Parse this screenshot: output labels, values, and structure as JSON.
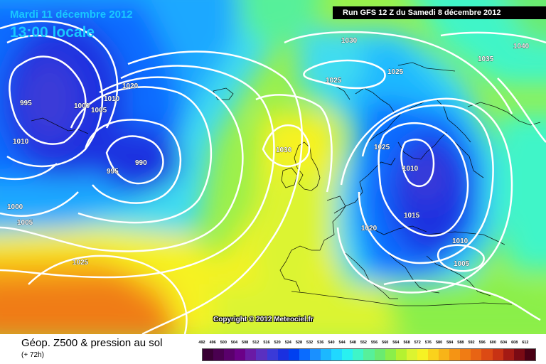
{
  "header": {
    "date_text": "Mardi 11 décembre 2012",
    "time_text": "13:00 locale",
    "run_text": "Run GFS 12 Z du Samedi 8 décembre 2012"
  },
  "copyright": "Copyright © 2012 Meteociel.fr",
  "legend": {
    "title": "Géop. Z500 & pression au sol",
    "subtitle": "(+ 72h)",
    "scale_values": [
      "492",
      "496",
      "500",
      "504",
      "508",
      "512",
      "516",
      "520",
      "524",
      "528",
      "532",
      "536",
      "540",
      "544",
      "548",
      "552",
      "556",
      "560",
      "564",
      "568",
      "572",
      "576",
      "580",
      "584",
      "588",
      "592",
      "596",
      "600",
      "604",
      "608",
      "612"
    ],
    "scale_colors": [
      "#3a0035",
      "#4a0050",
      "#5a006c",
      "#6b0088",
      "#6a1aa5",
      "#5a30c0",
      "#3a3ad8",
      "#1a30e0",
      "#0040f0",
      "#0a6cff",
      "#1a90ff",
      "#1cb8ff",
      "#20d8ff",
      "#29f0f0",
      "#3ff5c8",
      "#57f09a",
      "#6aeb70",
      "#8aef4a",
      "#b5f230",
      "#dcf430",
      "#f6f224",
      "#fad21c",
      "#f8b418",
      "#f59414",
      "#f07c14",
      "#e86414",
      "#dc4a14",
      "#c83214",
      "#a41a14",
      "#7a0a14",
      "#4a0014"
    ]
  },
  "isobars": [
    {
      "value": "995"
    },
    {
      "value": "1000"
    },
    {
      "value": "1005"
    },
    {
      "value": "1010"
    },
    {
      "value": "1010"
    },
    {
      "value": "1020"
    },
    {
      "value": "1005"
    },
    {
      "value": "990"
    },
    {
      "value": "995"
    },
    {
      "value": "1000"
    },
    {
      "value": "1005"
    },
    {
      "value": "1025"
    },
    {
      "value": "1030"
    },
    {
      "value": "1030"
    },
    {
      "value": "1025"
    },
    {
      "value": "1025"
    },
    {
      "value": "1035"
    },
    {
      "value": "1040"
    },
    {
      "value": "1025"
    },
    {
      "value": "1010"
    },
    {
      "value": "1015"
    },
    {
      "value": "1020"
    },
    {
      "value": "1010"
    },
    {
      "value": "1005"
    }
  ]
}
